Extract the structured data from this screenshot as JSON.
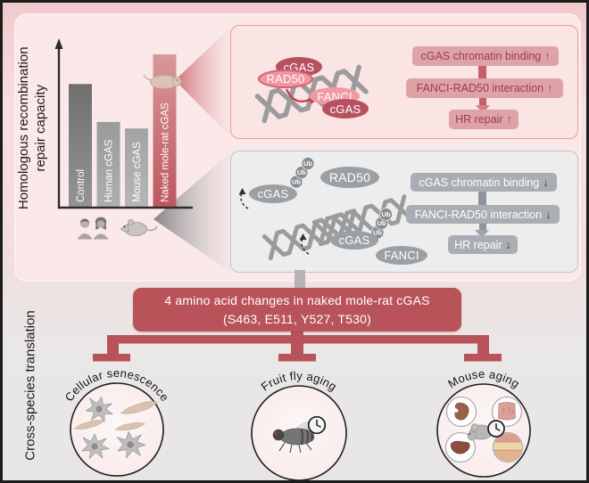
{
  "labels": {
    "hr_axis_line1": "Homologous recombination",
    "hr_axis_line2": "repair capacity",
    "cross_species": "Cross-species translation"
  },
  "chart_data": {
    "type": "bar",
    "categories": [
      "Control",
      "Human cGAS",
      "Mouse cGAS",
      "Naked mole-rat cGAS"
    ],
    "values": [
      0.75,
      0.52,
      0.48,
      0.93
    ],
    "ylabel": "Homologous recombination repair capacity",
    "ylim": [
      0,
      1
    ],
    "bar_colors": [
      "#7c7c7c",
      "#9e9e9e",
      "#a9a9a9",
      "#c05a62"
    ],
    "highlight": "Naked mole-rat cGAS"
  },
  "nmr_panel": {
    "molecules": {
      "cgas_top": "cGAS",
      "rad50": "RAD50",
      "fanci": "FANCI",
      "cgas_bottom": "cGAS"
    },
    "flow": {
      "step1": {
        "label": "cGAS chromatin binding",
        "arrow": "↑"
      },
      "step2": {
        "label": "FANCI-RAD50 interaction",
        "arrow": "↑"
      },
      "step3": {
        "label": "HR repair",
        "arrow": "↑"
      }
    },
    "accent_color": "#b9535a"
  },
  "ctrl_panel": {
    "molecules": {
      "cgas_left": "cGAS",
      "rad50": "RAD50",
      "cgas_right": "cGAS",
      "fanci": "FANCI",
      "ub": "Ub"
    },
    "flow": {
      "step1": {
        "label": "cGAS chromatin binding",
        "arrow": "↓"
      },
      "step2": {
        "label": "FANCI-RAD50 interaction",
        "arrow": "↓"
      },
      "step3": {
        "label": "HR repair",
        "arrow": "↓"
      }
    },
    "accent_color": "#9ba0a5"
  },
  "banner": {
    "line1": "4 amino acid changes in naked mole-rat cGAS",
    "line2": "(S463, E511, Y527, T530)",
    "color": "#b9535a"
  },
  "translation": {
    "circles": [
      {
        "label": "Cellular senescence"
      },
      {
        "label": "Fruit fly aging"
      },
      {
        "label": "Mouse aging"
      }
    ]
  }
}
